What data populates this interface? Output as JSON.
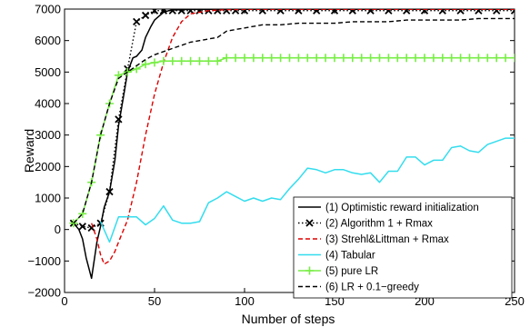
{
  "chart_data": {
    "type": "line",
    "title": "",
    "xlabel": "Number of steps",
    "ylabel": "Reward",
    "xlim": [
      0,
      250
    ],
    "ylim": [
      -2000,
      7000
    ],
    "xticks": [
      0,
      50,
      100,
      150,
      200,
      250
    ],
    "yticks": [
      -2000,
      -1000,
      0,
      1000,
      2000,
      3000,
      4000,
      5000,
      6000,
      7000
    ],
    "grid": false,
    "legend_position": "bottom-right",
    "series": [
      {
        "name": "(1) Optimistic reward initialization",
        "color": "#000000",
        "dash": "solid",
        "marker": "none",
        "x": [
          5,
          8,
          10,
          12,
          15,
          18,
          20,
          22,
          25,
          28,
          30,
          33,
          35,
          38,
          40,
          43,
          45,
          48,
          50,
          53,
          55,
          58,
          60,
          65,
          70,
          80,
          100,
          150,
          200,
          250
        ],
        "y": [
          200,
          0,
          -300,
          -900,
          -1550,
          -400,
          100,
          700,
          1200,
          2200,
          3300,
          4300,
          5000,
          5450,
          5500,
          5700,
          6100,
          6450,
          6650,
          6800,
          6900,
          6950,
          6970,
          6980,
          6990,
          6990,
          6990,
          6990,
          6990,
          6990
        ]
      },
      {
        "name": "(2) Algorithm 1 + Rmax",
        "color": "#000000",
        "dash": "dotted",
        "marker": "x",
        "x": [
          5,
          10,
          15,
          20,
          25,
          30,
          35,
          40,
          45,
          50,
          55,
          60,
          65,
          70,
          75,
          80,
          85,
          90,
          95,
          100,
          110,
          120,
          130,
          140,
          150,
          160,
          170,
          180,
          190,
          200,
          210,
          220,
          230,
          240,
          250
        ],
        "y": [
          200,
          100,
          50,
          200,
          1200,
          3500,
          5100,
          6600,
          6800,
          6950,
          6950,
          6950,
          6950,
          6950,
          6950,
          6950,
          6950,
          6950,
          6950,
          6950,
          6950,
          6950,
          6950,
          6950,
          6950,
          6950,
          6950,
          6950,
          6950,
          6950,
          6950,
          6950,
          6950,
          6950,
          6950
        ]
      },
      {
        "name": "(3) Strehl&Littman + Rmax",
        "color": "#dd0000",
        "dash": "dashed",
        "marker": "none",
        "x": [
          15,
          18,
          20,
          22,
          25,
          28,
          30,
          35,
          40,
          45,
          50,
          55,
          60,
          65,
          70,
          80,
          90,
          100,
          150,
          200,
          250
        ],
        "y": [
          200,
          -300,
          -800,
          -1100,
          -1000,
          -700,
          -400,
          300,
          1500,
          3000,
          4300,
          5300,
          6100,
          6600,
          6850,
          6950,
          6980,
          6990,
          6990,
          6990,
          6990
        ]
      },
      {
        "name": "(4) Tabular",
        "color": "#33ddee",
        "dash": "solid",
        "marker": "none",
        "x": [
          20,
          25,
          30,
          35,
          40,
          45,
          50,
          55,
          60,
          65,
          70,
          75,
          80,
          85,
          90,
          95,
          100,
          105,
          110,
          115,
          120,
          125,
          130,
          135,
          140,
          145,
          150,
          155,
          160,
          165,
          170,
          175,
          180,
          185,
          190,
          195,
          200,
          205,
          210,
          215,
          220,
          225,
          230,
          235,
          240,
          245,
          250
        ],
        "y": [
          250,
          -400,
          400,
          400,
          400,
          150,
          350,
          750,
          300,
          200,
          200,
          250,
          850,
          1000,
          1200,
          1050,
          900,
          1000,
          900,
          1000,
          950,
          1300,
          1600,
          1950,
          1900,
          1800,
          1900,
          1900,
          1800,
          1750,
          1800,
          1500,
          1850,
          1850,
          2300,
          2300,
          2050,
          2200,
          2200,
          2600,
          2650,
          2500,
          2450,
          2700,
          2800,
          2900,
          2900
        ]
      },
      {
        "name": "(5) pure LR",
        "color": "#77ee44",
        "dash": "solid",
        "marker": "+",
        "x": [
          5,
          10,
          15,
          20,
          25,
          30,
          35,
          40,
          45,
          50,
          55,
          60,
          65,
          70,
          75,
          80,
          85,
          90,
          95,
          100,
          105,
          110,
          115,
          120,
          125,
          130,
          135,
          140,
          145,
          150,
          155,
          160,
          165,
          170,
          175,
          180,
          185,
          190,
          195,
          200,
          205,
          210,
          215,
          220,
          225,
          230,
          235,
          240,
          245,
          250
        ],
        "y": [
          200,
          500,
          1500,
          3000,
          4000,
          4900,
          5000,
          5100,
          5250,
          5300,
          5350,
          5350,
          5350,
          5350,
          5350,
          5350,
          5350,
          5450,
          5450,
          5450,
          5450,
          5450,
          5450,
          5450,
          5450,
          5450,
          5450,
          5450,
          5450,
          5450,
          5450,
          5450,
          5450,
          5450,
          5450,
          5450,
          5450,
          5450,
          5450,
          5450,
          5450,
          5450,
          5450,
          5450,
          5450,
          5450,
          5450,
          5450,
          5450,
          5450
        ]
      },
      {
        "name": "(6) LR + 0.1−greedy",
        "color": "#000000",
        "dash": "dashed",
        "marker": "none",
        "x": [
          5,
          10,
          15,
          20,
          25,
          30,
          35,
          40,
          45,
          50,
          55,
          60,
          65,
          70,
          75,
          80,
          85,
          90,
          95,
          100,
          110,
          120,
          130,
          140,
          150,
          160,
          170,
          180,
          190,
          200,
          210,
          220,
          230,
          240,
          250
        ],
        "y": [
          200,
          500,
          1500,
          3000,
          4000,
          4800,
          5000,
          5200,
          5400,
          5550,
          5650,
          5750,
          5850,
          5950,
          6000,
          6050,
          6100,
          6300,
          6350,
          6400,
          6500,
          6500,
          6550,
          6550,
          6550,
          6600,
          6600,
          6600,
          6650,
          6650,
          6650,
          6650,
          6700,
          6700,
          6700
        ]
      }
    ]
  }
}
